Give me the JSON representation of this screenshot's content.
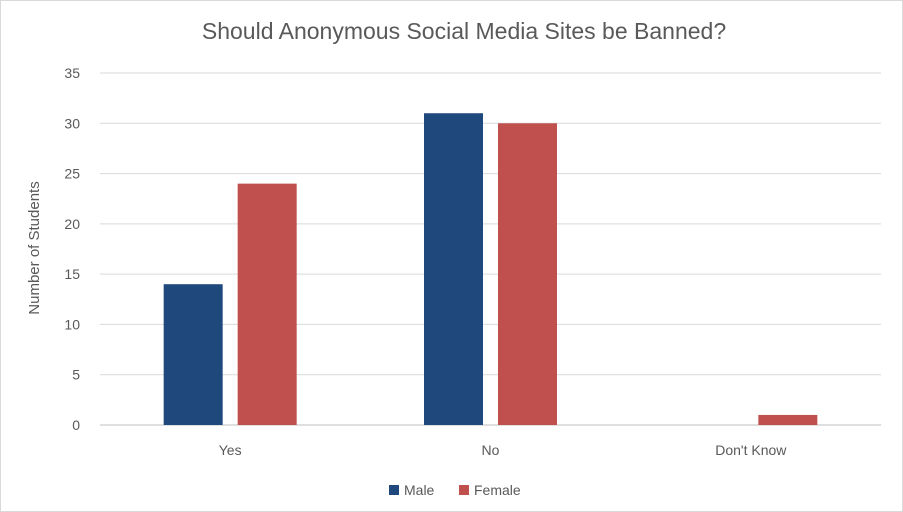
{
  "chart_data": {
    "type": "bar",
    "title": "Should Anonymous Social Media Sites be Banned?",
    "xlabel": "",
    "ylabel": "Number of Students",
    "categories": [
      "Yes",
      "No",
      "Don't Know"
    ],
    "series": [
      {
        "name": "Male",
        "values": [
          14,
          31,
          0
        ],
        "color": "#1f497d"
      },
      {
        "name": "Female",
        "values": [
          24,
          30,
          1
        ],
        "color": "#c0504d"
      }
    ],
    "ylim": [
      0,
      35
    ],
    "yticks": [
      0,
      5,
      10,
      15,
      20,
      25,
      30,
      35
    ],
    "grid": true,
    "legend_position": "bottom"
  }
}
